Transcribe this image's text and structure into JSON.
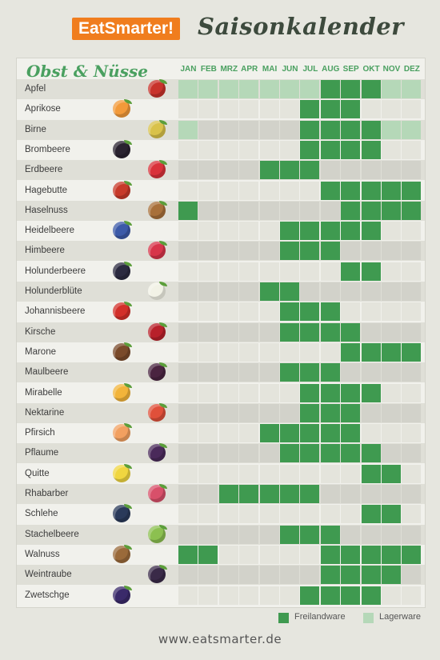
{
  "header": {
    "logo": "EatSmarter!",
    "title": "Saisonkalender"
  },
  "section_title": "Obst & Nüsse",
  "months": [
    "JAN",
    "FEB",
    "MRZ",
    "APR",
    "MAI",
    "JUN",
    "JUL",
    "AUG",
    "SEP",
    "OKT",
    "NOV",
    "DEZ"
  ],
  "rows": [
    {
      "name": "Apfel",
      "icon": "apple-icon",
      "color": "#c8332b",
      "cells": "LLLLLLLFFFLL"
    },
    {
      "name": "Aprikose",
      "icon": "apricot-icon",
      "color": "#f29a3a",
      "cells": "......FFF..."
    },
    {
      "name": "Birne",
      "icon": "pear-icon",
      "color": "#d9c24a",
      "cells": "L.....FFFFLL"
    },
    {
      "name": "Brombeere",
      "icon": "blackberry-icon",
      "color": "#2a2330",
      "cells": "......FFFF.."
    },
    {
      "name": "Erdbeere",
      "icon": "strawberry-icon",
      "color": "#d9323a",
      "cells": "....FFF....."
    },
    {
      "name": "Hagebutte",
      "icon": "rosehip-icon",
      "color": "#c73a2a",
      "cells": ".......FFFFF"
    },
    {
      "name": "Haselnuss",
      "icon": "hazelnut-icon",
      "color": "#a8703a",
      "cells": "F.......FFFF"
    },
    {
      "name": "Heidelbeere",
      "icon": "blueberry-icon",
      "color": "#3c5aa8",
      "cells": ".....FFFFF.."
    },
    {
      "name": "Himbeere",
      "icon": "raspberry-icon",
      "color": "#d7354a",
      "cells": ".....FFF...."
    },
    {
      "name": "Holunderbeere",
      "icon": "elderberry-icon",
      "color": "#2b2a40",
      "cells": "........FF.."
    },
    {
      "name": "Holunderblüte",
      "icon": "elderflower-icon",
      "color": "#f2f2e6",
      "cells": "....FF......"
    },
    {
      "name": "Johannisbeere",
      "icon": "redcurrant-icon",
      "color": "#d2302a",
      "cells": ".....FFF...."
    },
    {
      "name": "Kirsche",
      "icon": "cherry-icon",
      "color": "#b8202a",
      "cells": ".....FFFF..."
    },
    {
      "name": "Marone",
      "icon": "chestnut-icon",
      "color": "#7a4a2a",
      "cells": "........FFFF"
    },
    {
      "name": "Maulbeere",
      "icon": "mulberry-icon",
      "color": "#4a2440",
      "cells": ".....FFF...."
    },
    {
      "name": "Mirabelle",
      "icon": "mirabelle-icon",
      "color": "#f2b43a",
      "cells": "......FFFF.."
    },
    {
      "name": "Nektarine",
      "icon": "nectarine-icon",
      "color": "#e0503a",
      "cells": "......FFF..."
    },
    {
      "name": "Pfirsich",
      "icon": "peach-icon",
      "color": "#f2a060",
      "cells": "....FFFFF..."
    },
    {
      "name": "Pflaume",
      "icon": "plum-icon",
      "color": "#4a2a5a",
      "cells": ".....FFFFF.."
    },
    {
      "name": "Quitte",
      "icon": "quince-icon",
      "color": "#f0d640",
      "cells": ".........FF."
    },
    {
      "name": "Rhabarber",
      "icon": "rhubarb-icon",
      "color": "#d8506a",
      "cells": "..FFFFF....."
    },
    {
      "name": "Schlehe",
      "icon": "sloe-icon",
      "color": "#2a3a5a",
      "cells": ".........FF."
    },
    {
      "name": "Stachelbeere",
      "icon": "gooseberry-icon",
      "color": "#8cc050",
      "cells": ".....FFF...."
    },
    {
      "name": "Walnuss",
      "icon": "walnut-icon",
      "color": "#9a6a3a",
      "cells": "FF.....FFFFF"
    },
    {
      "name": "Weintraube",
      "icon": "grape-icon",
      "color": "#3a2a48",
      "cells": ".......FFFF."
    },
    {
      "name": "Zwetschge",
      "icon": "damson-icon",
      "color": "#3a2a6a",
      "cells": "......FFFF.."
    }
  ],
  "legend": {
    "freiland": "Freilandware",
    "lager": "Lagerware",
    "freiland_color": "#3f9a50",
    "lager_color": "#b5d8b8"
  },
  "footer": "www.eatsmarter.de"
}
